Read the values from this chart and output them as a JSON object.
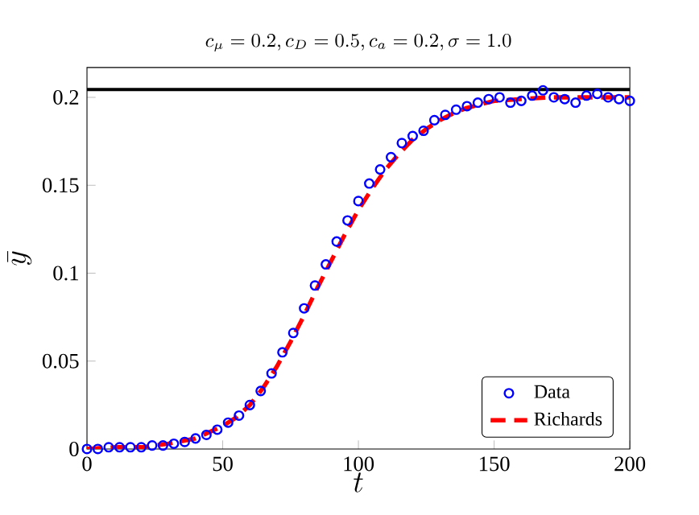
{
  "chart_data": {
    "type": "scatter",
    "title": "c_\\mu = 0.2, c_D = 0.5, c_a = 0.2, \\sigma = 1.0",
    "xlabel": "t",
    "ylabel": "\\bar{y}",
    "xlim": [
      0,
      200
    ],
    "ylim": [
      0,
      0.217
    ],
    "xticks": [
      0,
      50,
      100,
      150,
      200
    ],
    "yticks": [
      0,
      0.05,
      0.1,
      0.15,
      0.2
    ],
    "grid": false,
    "legend": "bottom right",
    "series": [
      {
        "name": "Data",
        "marker": "circle",
        "color": "#0000ff",
        "x": [
          0,
          4,
          8,
          12,
          16,
          20,
          24,
          28,
          32,
          36,
          40,
          44,
          48,
          52,
          56,
          60,
          64,
          68,
          72,
          76,
          80,
          84,
          88,
          92,
          96,
          100,
          104,
          108,
          112,
          116,
          120,
          124,
          128,
          132,
          136,
          140,
          144,
          148,
          152,
          156,
          160,
          164,
          168,
          172,
          176,
          180,
          184,
          188,
          192,
          196,
          200
        ],
        "values": [
          0,
          0,
          0.001,
          0.001,
          0.001,
          0.001,
          0.002,
          0.002,
          0.003,
          0.004,
          0.006,
          0.008,
          0.011,
          0.015,
          0.019,
          0.025,
          0.033,
          0.043,
          0.055,
          0.066,
          0.08,
          0.093,
          0.105,
          0.118,
          0.13,
          0.141,
          0.151,
          0.159,
          0.166,
          0.174,
          0.178,
          0.181,
          0.187,
          0.19,
          0.193,
          0.195,
          0.197,
          0.199,
          0.2,
          0.197,
          0.198,
          0.201,
          0.204,
          0.2,
          0.199,
          0.197,
          0.201,
          0.202,
          0.2,
          0.199,
          0.198
        ]
      },
      {
        "name": "Richards",
        "type": "line",
        "line_style": "dashed",
        "marker": "none",
        "color": "#ff0000",
        "x": [
          0,
          10,
          20,
          30,
          40,
          50,
          55,
          60,
          65,
          70,
          75,
          80,
          85,
          90,
          95,
          100,
          105,
          110,
          115,
          120,
          125,
          130,
          135,
          140,
          145,
          150,
          160,
          170,
          180,
          190,
          200
        ],
        "values": [
          0,
          0.001,
          0.001,
          0.003,
          0.006,
          0.013,
          0.018,
          0.025,
          0.035,
          0.047,
          0.061,
          0.076,
          0.092,
          0.107,
          0.122,
          0.136,
          0.148,
          0.159,
          0.168,
          0.176,
          0.182,
          0.187,
          0.191,
          0.194,
          0.196,
          0.198,
          0.199,
          0.2,
          0.2,
          0.2,
          0.2
        ]
      }
    ],
    "ref_lines": [
      {
        "axis": "y",
        "value": 0.2045,
        "color": "#000000",
        "line_style": "solid"
      }
    ]
  }
}
